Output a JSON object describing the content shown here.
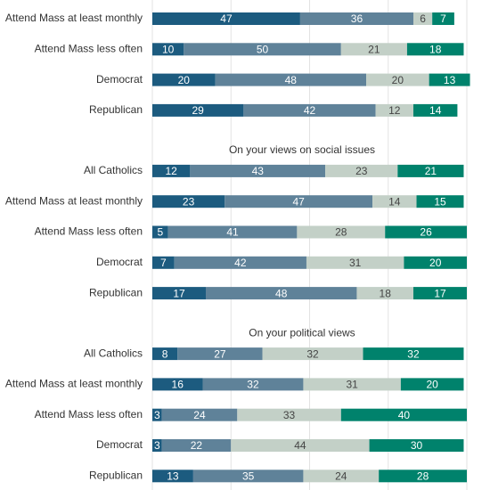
{
  "chart_data": [
    {
      "type": "bar",
      "orientation": "horizontal",
      "stacked": true,
      "categories": [
        "Attend Mass at least monthly",
        "Attend Mass less often",
        "Democrat",
        "Republican"
      ],
      "series": [
        {
          "color": "#1c5b7f",
          "values": [
            47,
            10,
            20,
            29
          ]
        },
        {
          "color": "#5f8299",
          "values": [
            36,
            50,
            48,
            42
          ]
        },
        {
          "color": "#c3d0c7",
          "values": [
            6,
            21,
            20,
            12
          ]
        },
        {
          "color": "#00826c",
          "values": [
            7,
            18,
            13,
            14
          ]
        }
      ],
      "xlim": [
        0,
        100
      ],
      "xticks": [
        0,
        25,
        50,
        75,
        100
      ],
      "grid": true
    },
    {
      "type": "bar",
      "orientation": "horizontal",
      "stacked": true,
      "title": "On your views on social issues",
      "categories": [
        "All Catholics",
        "Attend Mass at least monthly",
        "Attend Mass less often",
        "Democrat",
        "Republican"
      ],
      "series": [
        {
          "color": "#1c5b7f",
          "values": [
            12,
            23,
            5,
            7,
            17
          ]
        },
        {
          "color": "#5f8299",
          "values": [
            43,
            47,
            41,
            42,
            48
          ]
        },
        {
          "color": "#c3d0c7",
          "values": [
            23,
            14,
            28,
            31,
            18
          ]
        },
        {
          "color": "#00826c",
          "values": [
            21,
            15,
            26,
            20,
            17
          ]
        }
      ],
      "xlim": [
        0,
        100
      ],
      "xticks": [
        0,
        25,
        50,
        75,
        100
      ],
      "grid": true
    },
    {
      "type": "bar",
      "orientation": "horizontal",
      "stacked": true,
      "title": "On your political views",
      "categories": [
        "All Catholics",
        "Attend Mass at least monthly",
        "Attend Mass less often",
        "Democrat",
        "Republican"
      ],
      "series": [
        {
          "color": "#1c5b7f",
          "values": [
            8,
            16,
            3,
            3,
            13
          ]
        },
        {
          "color": "#5f8299",
          "values": [
            27,
            32,
            24,
            22,
            35
          ]
        },
        {
          "color": "#c3d0c7",
          "values": [
            32,
            31,
            33,
            44,
            24
          ]
        },
        {
          "color": "#00826c",
          "values": [
            32,
            20,
            40,
            30,
            28
          ]
        }
      ],
      "xlim": [
        0,
        100
      ],
      "xticks": [
        0,
        25,
        50,
        75,
        100
      ],
      "grid": true
    }
  ]
}
